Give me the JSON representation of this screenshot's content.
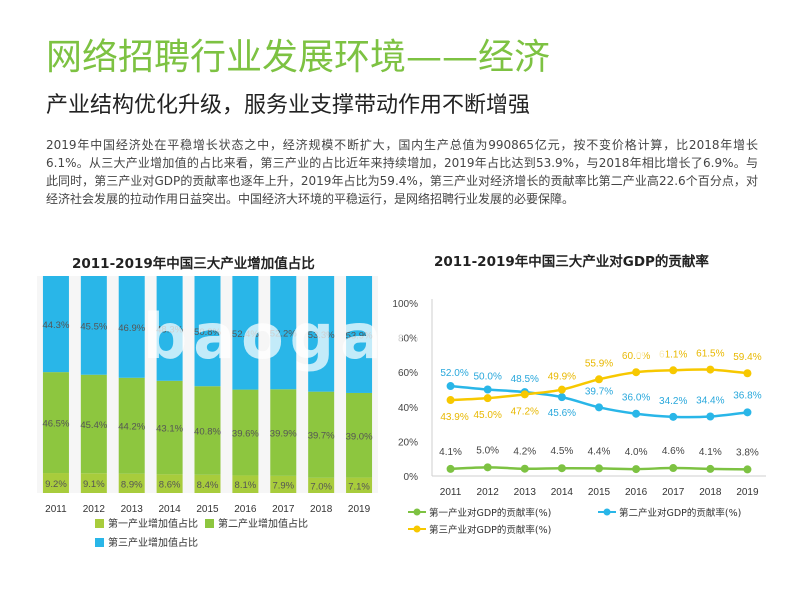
{
  "page": {
    "title": "网络招聘行业发展环境——经济",
    "subtitle": "产业结构优化升级，服务业支撑带动作用不断增强",
    "body": "2019年中国经济处在平稳增长状态之中，经济规模不断扩大，国内生产总值为990865亿元，按不变价格计算，比2018年增长6.1%。从三大产业增加值的占比来看，第三产业的占比近年来持续增加，2019年占比达到53.9%，与2018年相比增长了6.9%。与此同时，第三产业对GDP的贡献率也逐年上升，2019年占比为59.4%，第三产业对经济增长的贡献率比第二产业高22.6个百分点，对经济社会发展的拉动作用日益突出。中国经济大环境的平稳运行，是网络招聘行业发展的必要保障。",
    "watermark": "baogao8.com"
  },
  "colors": {
    "accent": "#7dc242",
    "primary": "#7dc242",
    "secondary": "#8dc63f",
    "tertiary": "#29b6e8",
    "line_primary": "#7dc242",
    "line_secondary": "#29b6e8",
    "line_tertiary": "#f7c800"
  },
  "chart_data": [
    {
      "type": "bar",
      "stacked": true,
      "title": "2011-2019年中国三大产业增加值占比",
      "categories": [
        "2011",
        "2012",
        "2013",
        "2014",
        "2015",
        "2016",
        "2017",
        "2018",
        "2019"
      ],
      "series": [
        {
          "name": "第一产业增加值占比",
          "values": [
            9.2,
            9.1,
            8.9,
            8.6,
            8.4,
            8.1,
            7.9,
            7.0,
            7.1
          ],
          "labels": [
            "9.2%",
            "9.1%",
            "8.9%",
            "8.6%",
            "8.4%",
            "8.1%",
            "7.9%",
            "7.0%",
            "7.1%"
          ]
        },
        {
          "name": "第二产业增加值占比",
          "values": [
            46.5,
            45.4,
            44.2,
            43.1,
            40.8,
            39.6,
            39.9,
            39.7,
            39.0
          ],
          "labels": [
            "46.5%",
            "45.4%",
            "44.2%",
            "43.1%",
            "40.8%",
            "39.6%",
            "39.9%",
            "39.7%",
            "39.0%"
          ]
        },
        {
          "name": "第三产业增加值占比",
          "values": [
            44.3,
            45.5,
            46.9,
            48.3,
            50.8,
            52.4,
            52.2,
            53.3,
            53.9
          ],
          "labels": [
            "44.3%",
            "45.5%",
            "46.9%",
            "48.3%",
            "50.8%",
            "52.4%",
            "52.2%",
            "53.3%",
            "53.9%"
          ]
        }
      ],
      "ylim": [
        0,
        100
      ],
      "legend": "bottom"
    },
    {
      "type": "line",
      "title": "2011-2019年中国三大产业对GDP的贡献率",
      "categories": [
        "2011",
        "2012",
        "2013",
        "2014",
        "2015",
        "2016",
        "2017",
        "2018",
        "2019"
      ],
      "series": [
        {
          "name": "第一产业对GDP的贡献率(%)",
          "values": [
            4.1,
            5.0,
            4.2,
            4.5,
            4.4,
            4.0,
            4.6,
            4.1,
            3.8
          ],
          "labels": [
            "4.1%",
            "5.0%",
            "4.2%",
            "4.5%",
            "4.4%",
            "4.0%",
            "4.6%",
            "4.1%",
            "3.8%"
          ]
        },
        {
          "name": "第二产业对GDP的贡献率(%)",
          "values": [
            52.0,
            50.0,
            48.5,
            45.6,
            39.7,
            36.0,
            34.2,
            34.4,
            36.8
          ],
          "labels": [
            "52.0%",
            "50.0%",
            "48.5%",
            "45.6%",
            "39.7%",
            "36.0%",
            "34.2%",
            "34.4%",
            "36.8%"
          ]
        },
        {
          "name": "第三产业对GDP的贡献率(%)",
          "values": [
            43.9,
            45.0,
            47.2,
            49.9,
            55.9,
            60.0,
            61.1,
            61.5,
            59.4
          ],
          "labels": [
            "43.9%",
            "45.0%",
            "47.2%",
            "49.9%",
            "55.9%",
            "60.0%",
            "61.1%",
            "61.5%",
            "59.4%"
          ]
        }
      ],
      "yticks": [
        "0%",
        "20%",
        "40%",
        "60%",
        "80%",
        "100%"
      ],
      "ylim": [
        0,
        100
      ],
      "legend": "bottom"
    }
  ]
}
